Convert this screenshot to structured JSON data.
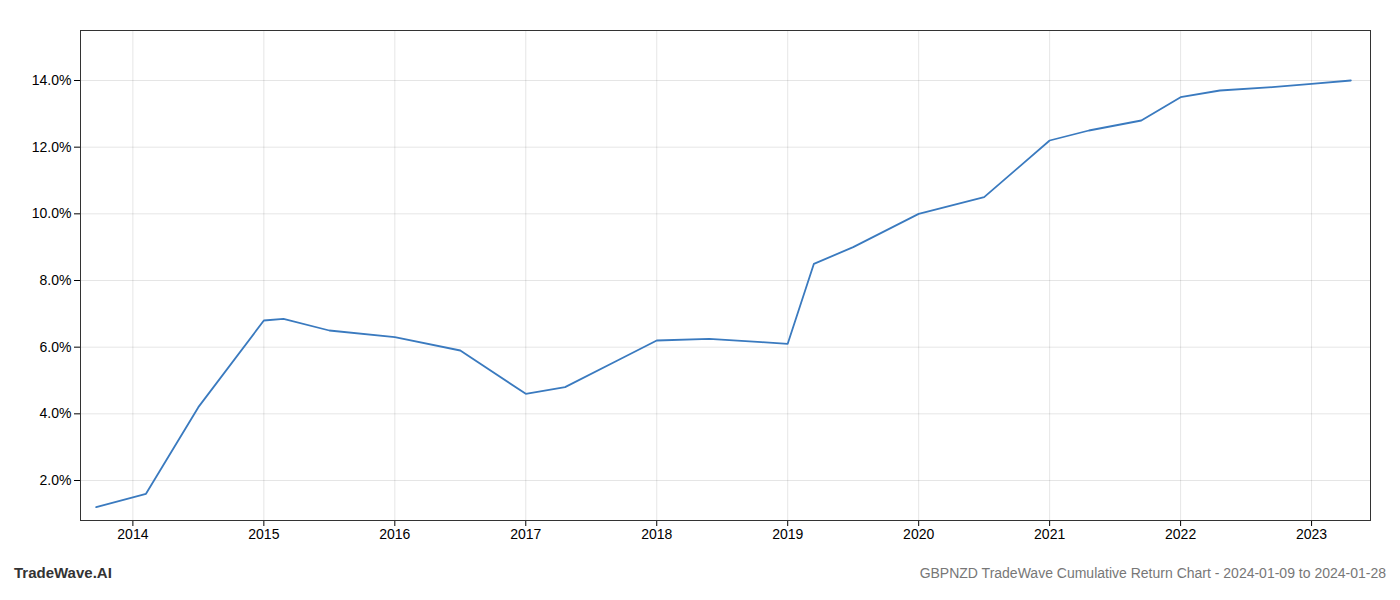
{
  "chart_data": {
    "type": "line",
    "title": "GBPNZD TradeWave Cumulative Return Chart - 2024-01-09 to 2024-01-28",
    "annotations": [
      "TradeWave.AI"
    ],
    "x": [
      2013.72,
      2014.1,
      2014.5,
      2015.0,
      2015.15,
      2015.5,
      2016.0,
      2016.5,
      2017.0,
      2017.3,
      2017.7,
      2018.0,
      2018.4,
      2018.8,
      2019.0,
      2019.2,
      2019.5,
      2020.0,
      2020.5,
      2021.0,
      2021.3,
      2021.7,
      2022.0,
      2022.3,
      2022.7,
      2023.0,
      2023.3
    ],
    "values": [
      1.2,
      1.6,
      4.2,
      6.8,
      6.85,
      6.5,
      6.3,
      5.9,
      4.6,
      4.8,
      5.6,
      6.2,
      6.25,
      6.15,
      6.1,
      8.5,
      9.0,
      10.0,
      10.5,
      12.2,
      12.5,
      12.8,
      13.5,
      13.7,
      13.8,
      13.9,
      14.0
    ],
    "color": "#3a7abf",
    "xlim": [
      2013.6,
      2023.45
    ],
    "xticks": [
      2014,
      2015,
      2016,
      2017,
      2018,
      2019,
      2020,
      2021,
      2022,
      2023
    ],
    "ylim": [
      0.8,
      15.5
    ],
    "yticks": [
      {
        "value": 2.0,
        "label": "2.0%"
      },
      {
        "value": 4.0,
        "label": "4.0%"
      },
      {
        "value": 6.0,
        "label": "6.0%"
      },
      {
        "value": 8.0,
        "label": "8.0%"
      },
      {
        "value": 10.0,
        "label": "10.0%"
      },
      {
        "value": 12.0,
        "label": "12.0%"
      },
      {
        "value": 14.0,
        "label": "14.0%"
      }
    ],
    "grid": true
  }
}
